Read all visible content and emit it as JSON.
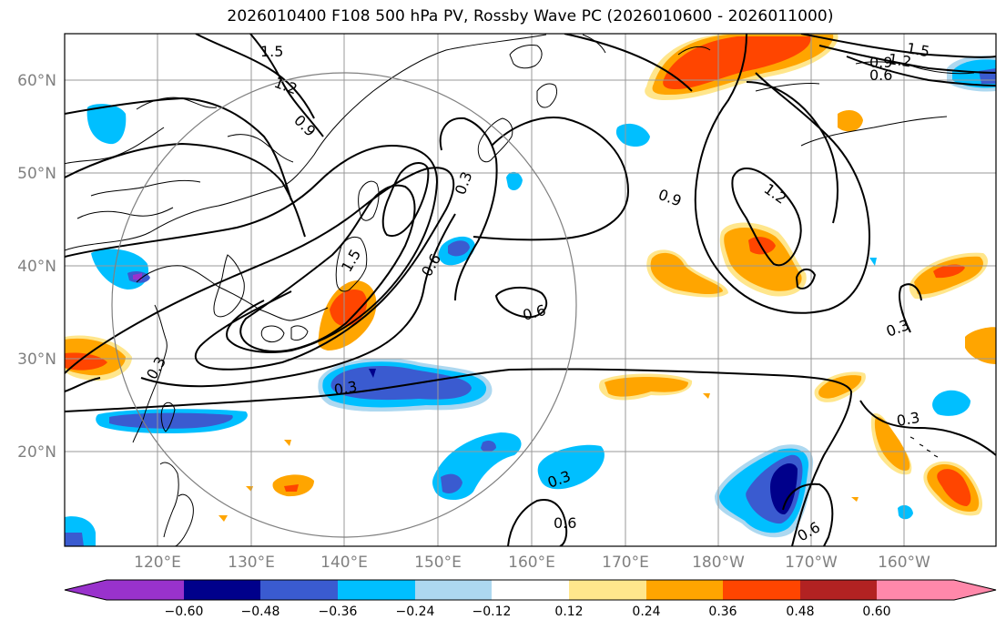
{
  "title": "2026010400 F108 500 hPa PV, Rossby Wave PC (2026010600 - 2026011000)",
  "axes": {
    "lon_labels": [
      "120°E",
      "130°E",
      "140°E",
      "150°E",
      "160°E",
      "170°E",
      "180°W",
      "170°W",
      "160°W"
    ],
    "lat_labels": [
      "60°N",
      "50°N",
      "40°N",
      "30°N",
      "20°N"
    ]
  },
  "contour_labels": [
    {
      "text": "1.5",
      "key": "a"
    },
    {
      "text": "1.2",
      "key": "b"
    },
    {
      "text": "0.9",
      "key": "c"
    },
    {
      "text": "0.3",
      "key": "d"
    },
    {
      "text": "0.3",
      "key": "e"
    },
    {
      "text": "0.6",
      "key": "f"
    },
    {
      "text": "0.3",
      "key": "g"
    },
    {
      "text": "1.5",
      "key": "h"
    },
    {
      "text": "0.6",
      "key": "i"
    },
    {
      "text": "0.3",
      "key": "j"
    },
    {
      "text": "0.6",
      "key": "k"
    },
    {
      "text": "0.9",
      "key": "l"
    },
    {
      "text": "1.2",
      "key": "m"
    },
    {
      "text": "1.5",
      "key": "n"
    },
    {
      "text": "1.2",
      "key": "o"
    },
    {
      "text": "0.9",
      "key": "p"
    },
    {
      "text": "0.6",
      "key": "q"
    },
    {
      "text": "0.3",
      "key": "r"
    },
    {
      "text": "0.3",
      "key": "s"
    },
    {
      "text": "0.6",
      "key": "t"
    }
  ],
  "colorbar": {
    "ticks": [
      "−0.60",
      "−0.48",
      "−0.36",
      "−0.24",
      "−0.12",
      "0.12",
      "0.24",
      "0.36",
      "0.48",
      "0.60"
    ],
    "colors": [
      "#9932cc",
      "#00008b",
      "#3a5bd0",
      "#00bfff",
      "#add8f0",
      "#ffffff",
      "#ffe68c",
      "#ffa500",
      "#ff4500",
      "#b22222",
      "#ff88aa"
    ]
  },
  "palette": {
    "neg_strong": "#00008b",
    "neg_mid": "#3a5bd0",
    "neg": "#00bfff",
    "neg_weak": "#add8f0",
    "pos_weak": "#ffe68c",
    "pos": "#ffa500",
    "pos_mid": "#ff4500",
    "pos_strong": "#b22222",
    "neg_extreme": "#9932cc"
  }
}
